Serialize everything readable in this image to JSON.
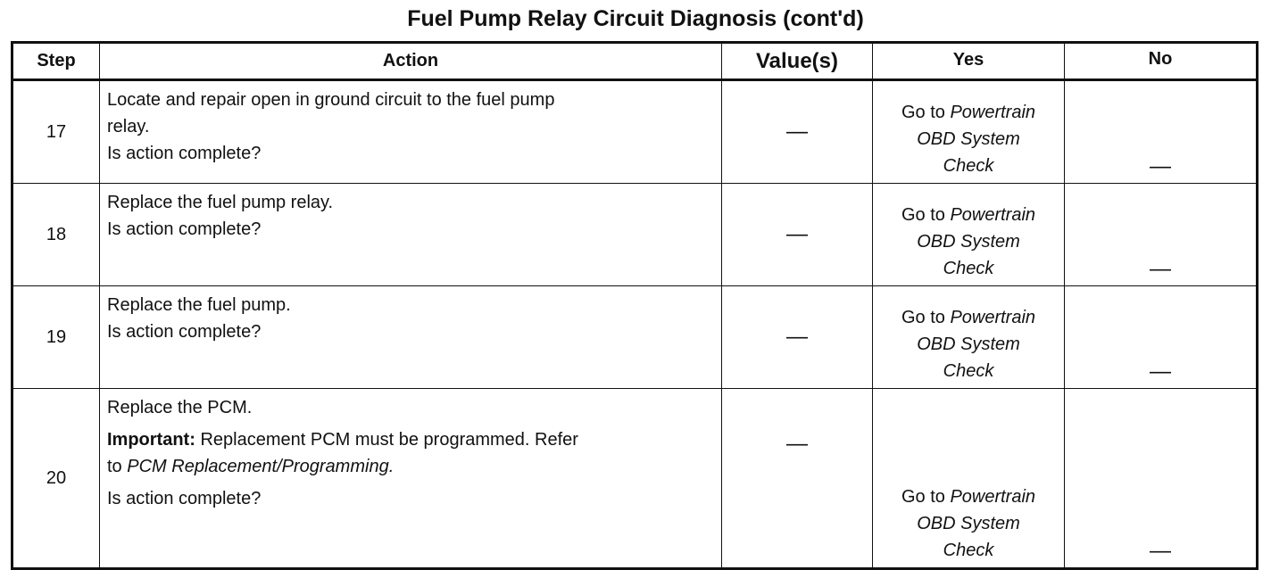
{
  "title": "Fuel Pump Relay Circuit Diagnosis (cont'd)",
  "columns": {
    "step": "Step",
    "action": "Action",
    "values": "Value(s)",
    "yes": "Yes",
    "no": "No"
  },
  "rows": [
    {
      "step": "17",
      "action_lines": [
        "Locate and repair open in ground circuit to the fuel pump",
        "relay."
      ],
      "question": "Is action complete?",
      "value": "—",
      "yes_prefix": "Go to",
      "yes_link_1": "Powertrain",
      "yes_link_2": "OBD System",
      "yes_link_3": "Check",
      "no": "—"
    },
    {
      "step": "18",
      "action_lines": [
        "Replace the fuel pump relay."
      ],
      "question": "Is action complete?",
      "value": "—",
      "yes_prefix": "Go to",
      "yes_link_1": "Powertrain",
      "yes_link_2": "OBD System",
      "yes_link_3": "Check",
      "no": "—"
    },
    {
      "step": "19",
      "action_lines": [
        "Replace the fuel pump."
      ],
      "question": "Is action complete?",
      "value": "—",
      "yes_prefix": "Go to",
      "yes_link_1": "Powertrain",
      "yes_link_2": "OBD System",
      "yes_link_3": "Check",
      "no": "—"
    },
    {
      "step": "20",
      "action_lines": [
        "Replace the PCM."
      ],
      "important_label": "Important:",
      "important_text_1": "Replacement PCM must be programmed. Refer",
      "important_text_2_prefix": "to",
      "important_link": "PCM Replacement/Programming.",
      "question": "Is action complete?",
      "value": "—",
      "yes_prefix": "Go to",
      "yes_link_1": "Powertrain",
      "yes_link_2": "OBD System",
      "yes_link_3": "Check",
      "no": "—"
    }
  ]
}
